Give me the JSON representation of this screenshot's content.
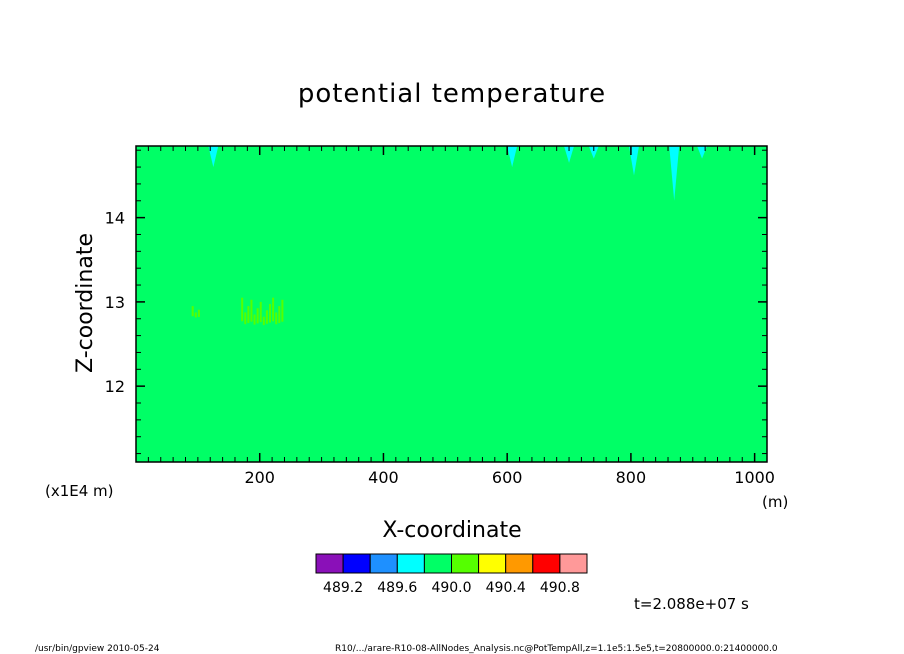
{
  "chart_data": {
    "type": "heatmap",
    "title": "potential temperature",
    "xlabel": "X-coordinate",
    "ylabel": "Z-coordinate",
    "x_unit": "(m)",
    "y_unit": "(x1E4 m)",
    "xlim": [
      0,
      1020
    ],
    "ylim": [
      11.1,
      14.85
    ],
    "x_ticks": [
      {
        "value": 200,
        "label": "200"
      },
      {
        "value": 400,
        "label": "400"
      },
      {
        "value": 600,
        "label": "600"
      },
      {
        "value": 800,
        "label": "800"
      },
      {
        "value": 1000,
        "label": "1000"
      }
    ],
    "y_ticks": [
      {
        "value": 12,
        "label": "12"
      },
      {
        "value": 13,
        "label": "13"
      },
      {
        "value": 14,
        "label": "14"
      }
    ],
    "background_value_range": [
      490.0,
      490.2
    ],
    "colorbar": {
      "colors": [
        "#8a10b8",
        "#0000ff",
        "#1e90ff",
        "#00ffff",
        "#00ff66",
        "#55ff00",
        "#ffff00",
        "#ff9900",
        "#ff0000",
        "#ff9999"
      ],
      "labels": [
        "489.2",
        "489.6",
        "490.0",
        "490.4",
        "490.8"
      ]
    },
    "features": [
      {
        "kind": "cyan-spike",
        "x": 125,
        "z_bottom": 14.6
      },
      {
        "kind": "cyan-spike",
        "x": 608,
        "z_bottom": 14.6
      },
      {
        "kind": "cyan-spike",
        "x": 700,
        "z_bottom": 14.65
      },
      {
        "kind": "cyan-spike",
        "x": 740,
        "z_bottom": 14.7
      },
      {
        "kind": "cyan-spike",
        "x": 805,
        "z_bottom": 14.5
      },
      {
        "kind": "cyan-spike",
        "x": 870,
        "z_bottom": 14.2
      },
      {
        "kind": "cyan-spike",
        "x": 915,
        "z_bottom": 14.7
      },
      {
        "kind": "green-patch",
        "x": [
          170,
          240
        ],
        "z": [
          12.7,
          13.05
        ]
      },
      {
        "kind": "green-patch",
        "x": [
          90,
          105
        ],
        "z": [
          12.8,
          12.95
        ]
      }
    ],
    "time_label": "t=2.088e+07 s"
  },
  "footer": {
    "left": "/usr/bin/gpview   2010-05-24",
    "right": "R10/.../arare-R10-08-AllNodes_Analysis.nc@PotTempAll,z=1.1e5:1.5e5,t=20800000.0:21400000.0"
  }
}
